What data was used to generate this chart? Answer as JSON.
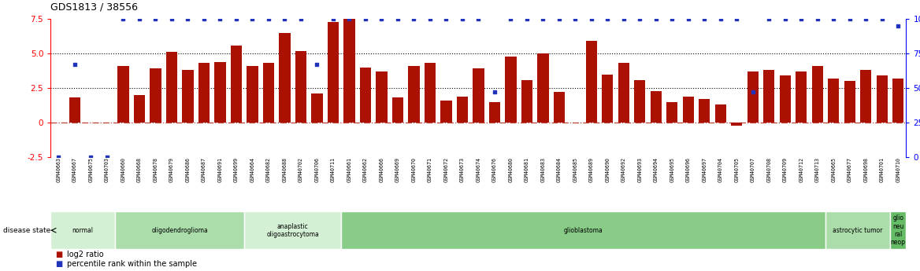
{
  "title": "GDS1813 / 38556",
  "samples": [
    "GSM40663",
    "GSM40667",
    "GSM40675",
    "GSM40703",
    "GSM40660",
    "GSM40668",
    "GSM40678",
    "GSM40679",
    "GSM40686",
    "GSM40687",
    "GSM40691",
    "GSM40699",
    "GSM40664",
    "GSM40682",
    "GSM40688",
    "GSM40702",
    "GSM40706",
    "GSM40711",
    "GSM40661",
    "GSM40662",
    "GSM40666",
    "GSM40669",
    "GSM40670",
    "GSM40671",
    "GSM40672",
    "GSM40673",
    "GSM40674",
    "GSM40676",
    "GSM40680",
    "GSM40681",
    "GSM40683",
    "GSM40684",
    "GSM40685",
    "GSM40689",
    "GSM40690",
    "GSM40692",
    "GSM40693",
    "GSM40694",
    "GSM40695",
    "GSM40696",
    "GSM40697",
    "GSM40704",
    "GSM40705",
    "GSM40707",
    "GSM40708",
    "GSM40709",
    "GSM40712",
    "GSM40713",
    "GSM40665",
    "GSM40677",
    "GSM40698",
    "GSM40701",
    "GSM40710"
  ],
  "log2_ratio": [
    0.0,
    1.8,
    0.0,
    0.0,
    4.1,
    2.0,
    3.9,
    5.1,
    3.8,
    4.3,
    4.4,
    5.6,
    4.1,
    4.3,
    6.5,
    5.2,
    2.1,
    7.3,
    7.5,
    4.0,
    3.7,
    1.8,
    4.1,
    4.3,
    1.6,
    1.9,
    3.9,
    1.5,
    4.8,
    3.1,
    5.0,
    2.2,
    0.0,
    5.9,
    3.5,
    4.3,
    3.1,
    2.3,
    1.5,
    1.9,
    1.7,
    1.3,
    -0.2,
    3.7,
    3.8,
    3.4,
    3.7,
    4.1,
    3.2,
    3.0,
    3.8,
    3.4,
    3.2
  ],
  "percentile": [
    0,
    67,
    0,
    0,
    100,
    100,
    100,
    100,
    100,
    100,
    100,
    100,
    100,
    100,
    100,
    100,
    67,
    100,
    100,
    100,
    100,
    100,
    100,
    100,
    100,
    100,
    100,
    47,
    100,
    100,
    100,
    100,
    100,
    100,
    100,
    100,
    100,
    100,
    100,
    100,
    100,
    100,
    100,
    47,
    100,
    100,
    100,
    100,
    100,
    100,
    100,
    100,
    95
  ],
  "disease_groups": [
    {
      "label": "normal",
      "start": 0,
      "end": 4,
      "color": "#d4f0d4"
    },
    {
      "label": "oligodendroglioma",
      "start": 4,
      "end": 12,
      "color": "#aaddaa"
    },
    {
      "label": "anaplastic\noligoastrocytoma",
      "start": 12,
      "end": 18,
      "color": "#d4f0d4"
    },
    {
      "label": "glioblastoma",
      "start": 18,
      "end": 48,
      "color": "#88cc88"
    },
    {
      "label": "astrocytic tumor",
      "start": 48,
      "end": 52,
      "color": "#aaddaa"
    },
    {
      "label": "glio\nneu\nral\nneop",
      "start": 52,
      "end": 53,
      "color": "#66bb66"
    }
  ],
  "bar_color": "#aa1100",
  "dot_color": "#2233bb",
  "ylim_left": [
    -2.5,
    7.5
  ],
  "ylim_right": [
    0,
    100
  ],
  "yticks_left": [
    -2.5,
    0.0,
    2.5,
    5.0,
    7.5
  ],
  "yticks_right": [
    0,
    25,
    50,
    75,
    100
  ]
}
